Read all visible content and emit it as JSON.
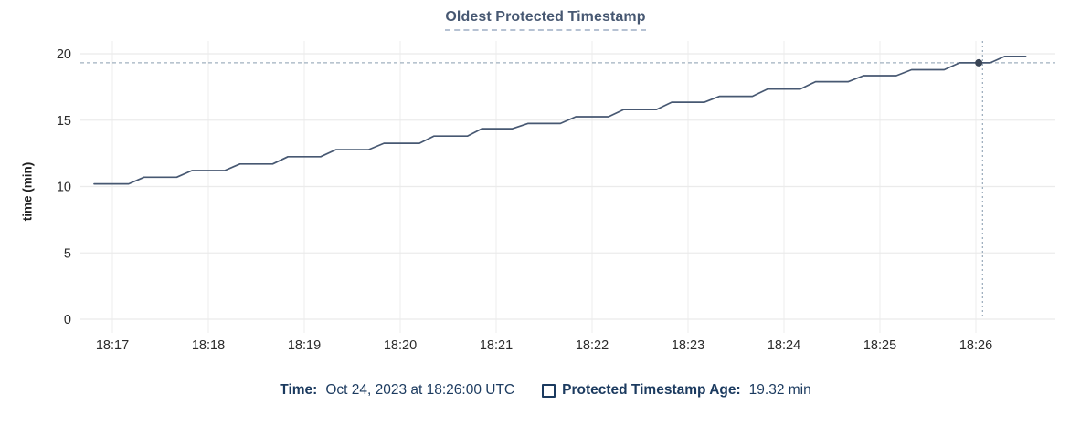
{
  "colors": {
    "title": "#475872",
    "series_line": "#475872",
    "hover_dot": "#394455",
    "crosshair": "#a0b0bf",
    "grid_major": "#ebebeb",
    "grid_minor": "#f2f2f2",
    "axis_text": "#2b2b2b",
    "legend_text": "#1b3a5f",
    "title_underline": "#b6c2d3",
    "background": "#ffffff"
  },
  "chart_data": {
    "type": "line",
    "title": "Oldest Protected Timestamp",
    "xlabel": "",
    "ylabel": "time (min)",
    "ylim": [
      0,
      20
    ],
    "yticks": [
      0,
      5,
      10,
      15,
      20
    ],
    "xticks": [
      "18:17",
      "18:18",
      "18:19",
      "18:20",
      "18:21",
      "18:22",
      "18:23",
      "18:24",
      "18:25",
      "18:26"
    ],
    "grid": true,
    "legend_position": "bottom",
    "series": [
      {
        "name": "Protected Timestamp Age",
        "unit": "min",
        "points": [
          [
            -0.19,
            10.2
          ],
          [
            0.17,
            10.2
          ],
          [
            0.33,
            10.7
          ],
          [
            0.67,
            10.7
          ],
          [
            0.83,
            11.2
          ],
          [
            1.17,
            11.2
          ],
          [
            1.33,
            11.7
          ],
          [
            1.67,
            11.7
          ],
          [
            1.83,
            12.25
          ],
          [
            2.17,
            12.25
          ],
          [
            2.33,
            12.78
          ],
          [
            2.67,
            12.78
          ],
          [
            2.83,
            13.26
          ],
          [
            3.2,
            13.26
          ],
          [
            3.35,
            13.8
          ],
          [
            3.7,
            13.8
          ],
          [
            3.85,
            14.36
          ],
          [
            4.17,
            14.36
          ],
          [
            4.33,
            14.75
          ],
          [
            4.67,
            14.75
          ],
          [
            4.83,
            15.26
          ],
          [
            5.17,
            15.26
          ],
          [
            5.33,
            15.8
          ],
          [
            5.67,
            15.8
          ],
          [
            5.83,
            16.35
          ],
          [
            6.17,
            16.35
          ],
          [
            6.33,
            16.8
          ],
          [
            6.67,
            16.8
          ],
          [
            6.83,
            17.35
          ],
          [
            7.17,
            17.35
          ],
          [
            7.33,
            17.9
          ],
          [
            7.67,
            17.9
          ],
          [
            7.83,
            18.35
          ],
          [
            8.17,
            18.35
          ],
          [
            8.33,
            18.8
          ],
          [
            8.67,
            18.8
          ],
          [
            8.83,
            19.32
          ],
          [
            9.15,
            19.32
          ],
          [
            9.3,
            19.8
          ],
          [
            9.52,
            19.8
          ]
        ]
      }
    ],
    "crosshair": {
      "time_minutes_from_start": 9.07,
      "value": 19.32
    },
    "hover_point": {
      "time_minutes_from_start": 9.03,
      "value": 19.32
    }
  },
  "legend": {
    "time_label": "Time:",
    "time_value": "Oct 24, 2023 at 18:26:00 UTC",
    "series_label": "Protected Timestamp Age:",
    "series_value": "19.32 min"
  }
}
